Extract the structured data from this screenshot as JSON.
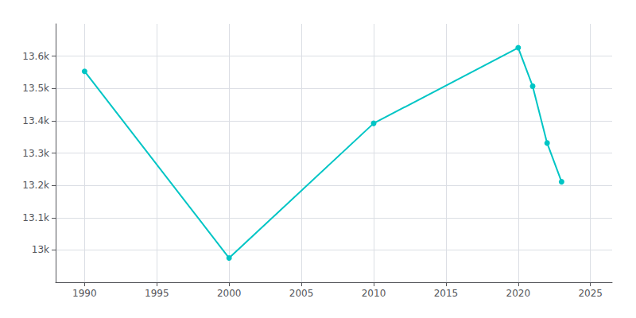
{
  "chart_data": {
    "type": "line",
    "x": [
      1990,
      2000,
      2010,
      2020,
      2021,
      2022,
      2023
    ],
    "values": [
      13553,
      12975,
      13392,
      13626,
      13507,
      13331,
      13211
    ],
    "color": "#00C5C5",
    "marker": "circle",
    "xlim": [
      1988,
      2026.5
    ],
    "ylim": [
      12900,
      13700
    ],
    "xticks": [
      1990,
      1995,
      2000,
      2005,
      2010,
      2015,
      2020,
      2025
    ],
    "yticks": [
      {
        "value": 13000,
        "label": "13k"
      },
      {
        "value": 13100,
        "label": "13.1k"
      },
      {
        "value": 13200,
        "label": "13.2k"
      },
      {
        "value": 13300,
        "label": "13.3k"
      },
      {
        "value": 13400,
        "label": "13.4k"
      },
      {
        "value": 13500,
        "label": "13.5k"
      },
      {
        "value": 13600,
        "label": "13.6k"
      }
    ],
    "grid": true
  }
}
